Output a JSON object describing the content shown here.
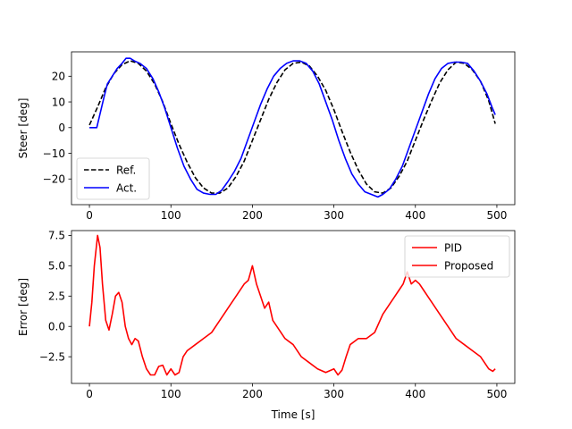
{
  "chart_data": [
    {
      "type": "line",
      "ylabel": "Steer [deg]",
      "xlabel": "",
      "xlim": [
        -22,
        522
      ],
      "ylim": [
        -30,
        29.5
      ],
      "xticks": [
        0,
        100,
        200,
        300,
        400,
        500
      ],
      "yticks": [
        -20,
        -10,
        0,
        10,
        20
      ],
      "legend_position": "lower-left",
      "series": [
        {
          "name": "Ref.",
          "color": "#000000",
          "style": "dashed",
          "points": [
            [
              0,
              1
            ],
            [
              10,
              8
            ],
            [
              20,
              15.5
            ],
            [
              30,
              21
            ],
            [
              40,
              24.5
            ],
            [
              50,
              26
            ],
            [
              60,
              25
            ],
            [
              70,
              22
            ],
            [
              80,
              17
            ],
            [
              90,
              10
            ],
            [
              100,
              1.5
            ],
            [
              110,
              -6.5
            ],
            [
              120,
              -13.5
            ],
            [
              130,
              -19.5
            ],
            [
              140,
              -23.5
            ],
            [
              150,
              -25.5
            ],
            [
              160,
              -25.5
            ],
            [
              170,
              -23.5
            ],
            [
              180,
              -19
            ],
            [
              190,
              -13
            ],
            [
              200,
              -5
            ],
            [
              210,
              3
            ],
            [
              220,
              11
            ],
            [
              230,
              17.5
            ],
            [
              240,
              22.5
            ],
            [
              250,
              25
            ],
            [
              260,
              25.5
            ],
            [
              270,
              24
            ],
            [
              280,
              20
            ],
            [
              290,
              14.5
            ],
            [
              300,
              7
            ],
            [
              310,
              -1.5
            ],
            [
              320,
              -9.5
            ],
            [
              330,
              -16.5
            ],
            [
              340,
              -22
            ],
            [
              350,
              -25
            ],
            [
              360,
              -25.5
            ],
            [
              370,
              -23.5
            ],
            [
              380,
              -19
            ],
            [
              390,
              -13
            ],
            [
              400,
              -5
            ],
            [
              410,
              3
            ],
            [
              420,
              10.5
            ],
            [
              430,
              17.5
            ],
            [
              440,
              22.5
            ],
            [
              450,
              25.5
            ],
            [
              460,
              25
            ],
            [
              470,
              22.5
            ],
            [
              480,
              18
            ],
            [
              490,
              10.5
            ],
            [
              498,
              1.5
            ]
          ]
        },
        {
          "name": "Act.",
          "color": "#0000ff",
          "style": "solid",
          "points": [
            [
              0,
              0
            ],
            [
              9,
              0
            ],
            [
              12,
              4
            ],
            [
              18,
              12
            ],
            [
              22,
              17
            ],
            [
              28,
              20
            ],
            [
              34,
              23
            ],
            [
              40,
              25
            ],
            [
              45,
              27
            ],
            [
              50,
              27
            ],
            [
              55,
              26
            ],
            [
              62,
              25
            ],
            [
              70,
              23
            ],
            [
              78,
              19
            ],
            [
              85,
              14
            ],
            [
              92,
              8
            ],
            [
              100,
              0
            ],
            [
              108,
              -8
            ],
            [
              116,
              -15
            ],
            [
              124,
              -20
            ],
            [
              132,
              -24
            ],
            [
              140,
              -25.5
            ],
            [
              148,
              -26
            ],
            [
              155,
              -26
            ],
            [
              162,
              -24.5
            ],
            [
              170,
              -21
            ],
            [
              178,
              -17
            ],
            [
              186,
              -12
            ],
            [
              194,
              -5
            ],
            [
              202,
              2
            ],
            [
              210,
              9
            ],
            [
              218,
              15
            ],
            [
              226,
              20
            ],
            [
              234,
              23
            ],
            [
              242,
              25
            ],
            [
              250,
              26
            ],
            [
              258,
              26
            ],
            [
              266,
              25
            ],
            [
              274,
              22
            ],
            [
              282,
              17
            ],
            [
              290,
              10
            ],
            [
              298,
              3
            ],
            [
              306,
              -5
            ],
            [
              314,
              -12
            ],
            [
              322,
              -18
            ],
            [
              330,
              -22
            ],
            [
              338,
              -25
            ],
            [
              346,
              -26
            ],
            [
              354,
              -27
            ],
            [
              360,
              -26
            ],
            [
              368,
              -24
            ],
            [
              376,
              -20
            ],
            [
              384,
              -15
            ],
            [
              392,
              -8
            ],
            [
              400,
              -1
            ],
            [
              408,
              6
            ],
            [
              416,
              13
            ],
            [
              424,
              19
            ],
            [
              432,
              23
            ],
            [
              440,
              25
            ],
            [
              448,
              25.5
            ],
            [
              456,
              25.5
            ],
            [
              464,
              25
            ],
            [
              472,
              22
            ],
            [
              480,
              18
            ],
            [
              488,
              13
            ],
            [
              494,
              8
            ],
            [
              498,
              5
            ]
          ]
        }
      ]
    },
    {
      "type": "line",
      "ylabel": "Error [deg]",
      "xlabel": "Time [s]",
      "xlim": [
        -22,
        522
      ],
      "ylim": [
        -4.7,
        7.9
      ],
      "xticks": [
        0,
        100,
        200,
        300,
        400,
        500
      ],
      "yticks": [
        -2.5,
        0.0,
        2.5,
        5.0,
        7.5
      ],
      "ytick_labels": [
        "−2.5",
        "0.0",
        "2.5",
        "5.0",
        "7.5"
      ],
      "legend_position": "top-right",
      "series": [
        {
          "name": "PID",
          "color": "#ff0000",
          "style": "solid",
          "points": [
            [
              0,
              0
            ],
            [
              3,
              2
            ],
            [
              6,
              5
            ],
            [
              10,
              7.5
            ],
            [
              13,
              6.5
            ],
            [
              16,
              3.5
            ],
            [
              20,
              0.5
            ],
            [
              24,
              -0.3
            ],
            [
              28,
              1
            ],
            [
              32,
              2.5
            ],
            [
              36,
              2.8
            ],
            [
              40,
              2
            ],
            [
              44,
              0
            ],
            [
              48,
              -1
            ],
            [
              52,
              -1.5
            ],
            [
              56,
              -1
            ],
            [
              60,
              -1.2
            ],
            [
              65,
              -2.5
            ],
            [
              70,
              -3.5
            ],
            [
              75,
              -4
            ],
            [
              80,
              -4
            ],
            [
              85,
              -3.3
            ],
            [
              90,
              -3.2
            ],
            [
              95,
              -4
            ],
            [
              100,
              -3.5
            ],
            [
              105,
              -4
            ],
            [
              110,
              -3.8
            ],
            [
              115,
              -2.5
            ],
            [
              120,
              -2
            ],
            [
              130,
              -1.5
            ],
            [
              140,
              -1
            ],
            [
              150,
              -0.5
            ],
            [
              160,
              0.5
            ],
            [
              170,
              1.5
            ],
            [
              180,
              2.5
            ],
            [
              190,
              3.5
            ],
            [
              195,
              3.8
            ],
            [
              200,
              5
            ],
            [
              205,
              3.5
            ],
            [
              210,
              2.5
            ],
            [
              215,
              1.5
            ],
            [
              220,
              2
            ],
            [
              225,
              0.5
            ],
            [
              230,
              0
            ],
            [
              240,
              -1
            ],
            [
              250,
              -1.5
            ],
            [
              260,
              -2.5
            ],
            [
              270,
              -3
            ],
            [
              280,
              -3.5
            ],
            [
              290,
              -3.8
            ],
            [
              300,
              -3.5
            ],
            [
              305,
              -4
            ],
            [
              310,
              -3.6
            ],
            [
              315,
              -2.5
            ],
            [
              320,
              -1.5
            ],
            [
              330,
              -1
            ],
            [
              340,
              -1
            ],
            [
              350,
              -0.5
            ],
            [
              360,
              1
            ],
            [
              370,
              2
            ],
            [
              375,
              2.5
            ],
            [
              380,
              3
            ],
            [
              385,
              3.5
            ],
            [
              390,
              4.5
            ],
            [
              395,
              3.5
            ],
            [
              400,
              3.8
            ],
            [
              405,
              3.5
            ],
            [
              410,
              3
            ],
            [
              415,
              2.5
            ],
            [
              420,
              2
            ],
            [
              430,
              1
            ],
            [
              440,
              0
            ],
            [
              450,
              -1
            ],
            [
              460,
              -1.5
            ],
            [
              470,
              -2
            ],
            [
              480,
              -2.5
            ],
            [
              490,
              -3.5
            ],
            [
              495,
              -3.7
            ],
            [
              498,
              -3.5
            ]
          ]
        },
        {
          "name": "Proposed",
          "color": "#ff0000",
          "style": "solid",
          "points": []
        }
      ]
    }
  ]
}
